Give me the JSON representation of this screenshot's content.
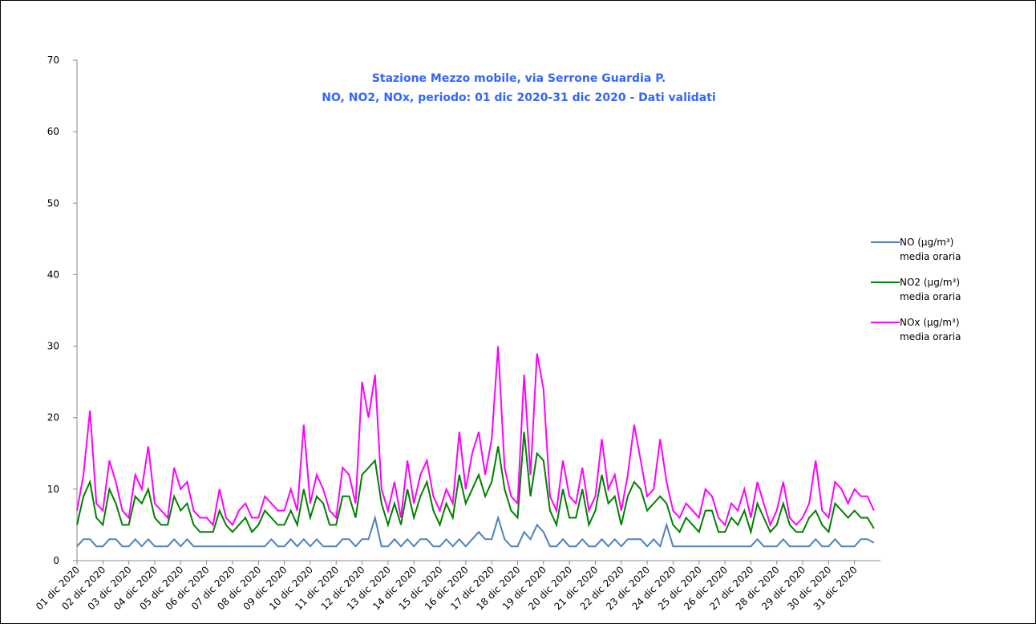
{
  "chart_data": {
    "type": "line",
    "title": "Stazione Mezzo mobile, via Serrone Guardia P.",
    "subtitle": "NO, NO2, NOx, periodo: 01 dic 2020-31 dic 2020 - Dati validati",
    "x": [
      0,
      0.25,
      0.5,
      0.75,
      1,
      1.25,
      1.5,
      1.75,
      2,
      2.25,
      2.5,
      2.75,
      3,
      3.25,
      3.5,
      3.75,
      4,
      4.25,
      4.5,
      4.75,
      5,
      5.25,
      5.5,
      5.75,
      6,
      6.25,
      6.5,
      6.75,
      7,
      7.25,
      7.5,
      7.75,
      8,
      8.25,
      8.5,
      8.75,
      9,
      9.25,
      9.5,
      9.75,
      10,
      10.25,
      10.5,
      10.75,
      11,
      11.25,
      11.5,
      11.75,
      12,
      12.25,
      12.5,
      12.75,
      13,
      13.25,
      13.5,
      13.75,
      14,
      14.25,
      14.5,
      14.75,
      15,
      15.25,
      15.5,
      15.75,
      16,
      16.25,
      16.5,
      16.75,
      17,
      17.25,
      17.5,
      17.75,
      18,
      18.25,
      18.5,
      18.75,
      19,
      19.25,
      19.5,
      19.75,
      20,
      20.25,
      20.5,
      20.75,
      21,
      21.25,
      21.5,
      21.75,
      22,
      22.25,
      22.5,
      22.75,
      23,
      23.25,
      23.5,
      23.75,
      24,
      24.25,
      24.5,
      24.75,
      25,
      25.25,
      25.5,
      25.75,
      26,
      26.25,
      26.5,
      26.75,
      27,
      27.25,
      27.5,
      27.75,
      28,
      28.25,
      28.5,
      28.75,
      29,
      29.25,
      29.5,
      29.75,
      30,
      30.25,
      30.5,
      30.75
    ],
    "series": [
      {
        "name": "NO (µg/m³) media oraria",
        "color": "#4f81bd",
        "values": [
          2,
          3,
          3,
          2,
          2,
          3,
          3,
          2,
          2,
          3,
          2,
          3,
          2,
          2,
          2,
          3,
          2,
          3,
          2,
          2,
          2,
          2,
          2,
          2,
          2,
          2,
          2,
          2,
          2,
          2,
          3,
          2,
          2,
          3,
          2,
          3,
          2,
          3,
          2,
          2,
          2,
          3,
          3,
          2,
          3,
          3,
          6,
          2,
          2,
          3,
          2,
          3,
          2,
          3,
          3,
          2,
          2,
          3,
          2,
          3,
          2,
          3,
          4,
          3,
          3,
          6,
          3,
          2,
          2,
          4,
          3,
          5,
          4,
          2,
          2,
          3,
          2,
          2,
          3,
          2,
          2,
          3,
          2,
          3,
          2,
          3,
          3,
          3,
          2,
          3,
          2,
          5,
          2,
          2,
          2,
          2,
          2,
          2,
          2,
          2,
          2,
          2,
          2,
          2,
          2,
          3,
          2,
          2,
          2,
          3,
          2,
          2,
          2,
          2,
          3,
          2,
          2,
          3,
          2,
          2,
          2,
          3,
          3,
          2.5
        ]
      },
      {
        "name": "NO2 (µg/m³) media oraria",
        "color": "#008000",
        "values": [
          5,
          9,
          11,
          6,
          5,
          10,
          8,
          5,
          5,
          9,
          8,
          10,
          6,
          5,
          5,
          9,
          7,
          8,
          5,
          4,
          4,
          4,
          7,
          5,
          4,
          5,
          6,
          4,
          5,
          7,
          6,
          5,
          5,
          7,
          5,
          10,
          6,
          9,
          8,
          5,
          5,
          9,
          9,
          6,
          12,
          13,
          14,
          8,
          5,
          8,
          5,
          10,
          6,
          9,
          11,
          7,
          5,
          8,
          6,
          12,
          8,
          10,
          12,
          9,
          11,
          16,
          10,
          7,
          6,
          18,
          9,
          15,
          14,
          7,
          5,
          10,
          6,
          6,
          10,
          5,
          7,
          12,
          8,
          9,
          5,
          9,
          11,
          10,
          7,
          8,
          9,
          8,
          5,
          4,
          6,
          5,
          4,
          7,
          7,
          4,
          4,
          6,
          5,
          7,
          4,
          8,
          6,
          4,
          5,
          8,
          5,
          4,
          4,
          6,
          7,
          5,
          4,
          8,
          7,
          6,
          7,
          6,
          6,
          4.5
        ]
      },
      {
        "name": "NOx (µg/m³) media oraria",
        "color": "#ff00ff",
        "values": [
          7,
          12,
          21,
          8,
          7,
          14,
          11,
          7,
          6,
          12,
          10,
          16,
          8,
          7,
          6,
          13,
          10,
          11,
          7,
          6,
          6,
          5,
          10,
          6,
          5,
          7,
          8,
          6,
          6,
          9,
          8,
          7,
          7,
          10,
          7,
          19,
          8,
          12,
          10,
          7,
          6,
          13,
          12,
          8,
          25,
          20,
          26,
          10,
          7,
          11,
          6,
          14,
          8,
          12,
          14,
          9,
          7,
          10,
          8,
          18,
          10,
          15,
          18,
          12,
          17,
          30,
          13,
          9,
          8,
          26,
          12,
          29,
          24,
          9,
          7,
          14,
          9,
          8,
          13,
          7,
          9,
          17,
          10,
          12,
          7,
          12,
          19,
          14,
          9,
          10,
          17,
          11,
          7,
          6,
          8,
          7,
          6,
          10,
          9,
          6,
          5,
          8,
          7,
          10,
          6,
          11,
          8,
          5,
          7,
          11,
          6,
          5,
          6,
          8,
          14,
          7,
          6,
          11,
          10,
          8,
          10,
          9,
          9,
          7
        ]
      }
    ],
    "xlim": [
      0,
      31
    ],
    "xticks": [
      {
        "value": 0,
        "label": "01 dic 2020"
      },
      {
        "value": 1,
        "label": "02 dic 2020"
      },
      {
        "value": 2,
        "label": "03 dic 2020"
      },
      {
        "value": 3,
        "label": "04 dic 2020"
      },
      {
        "value": 4,
        "label": "05 dic 2020"
      },
      {
        "value": 5,
        "label": "06 dic 2020"
      },
      {
        "value": 6,
        "label": "07 dic 2020"
      },
      {
        "value": 7,
        "label": "08 dic 2020"
      },
      {
        "value": 8,
        "label": "09 dic 2020"
      },
      {
        "value": 9,
        "label": "10 dic 2020"
      },
      {
        "value": 10,
        "label": "11 dic 2020"
      },
      {
        "value": 11,
        "label": "12 dic 2020"
      },
      {
        "value": 12,
        "label": "13 dic 2020"
      },
      {
        "value": 13,
        "label": "14 dic 2020"
      },
      {
        "value": 14,
        "label": "15 dic 2020"
      },
      {
        "value": 15,
        "label": "16 dic 2020"
      },
      {
        "value": 16,
        "label": "17 dic 2020"
      },
      {
        "value": 17,
        "label": "18 dic 2020"
      },
      {
        "value": 18,
        "label": "19 dic 2020"
      },
      {
        "value": 19,
        "label": "20 dic 2020"
      },
      {
        "value": 20,
        "label": "21 dic 2020"
      },
      {
        "value": 21,
        "label": "22 dic 2020"
      },
      {
        "value": 22,
        "label": "23 dic 2020"
      },
      {
        "value": 23,
        "label": "24 dic 2020"
      },
      {
        "value": 24,
        "label": "25 dic 2020"
      },
      {
        "value": 25,
        "label": "26 dic 2020"
      },
      {
        "value": 26,
        "label": "27 dic 2020"
      },
      {
        "value": 27,
        "label": "28 dic 2020"
      },
      {
        "value": 28,
        "label": "29 dic 2020"
      },
      {
        "value": 29,
        "label": "30 dic 2020"
      },
      {
        "value": 30,
        "label": "31 dic 2020"
      }
    ],
    "ylim": [
      0,
      70
    ],
    "yticks": [
      0,
      10,
      20,
      30,
      40,
      50,
      60,
      70
    ],
    "grid": false,
    "legend": "right"
  }
}
